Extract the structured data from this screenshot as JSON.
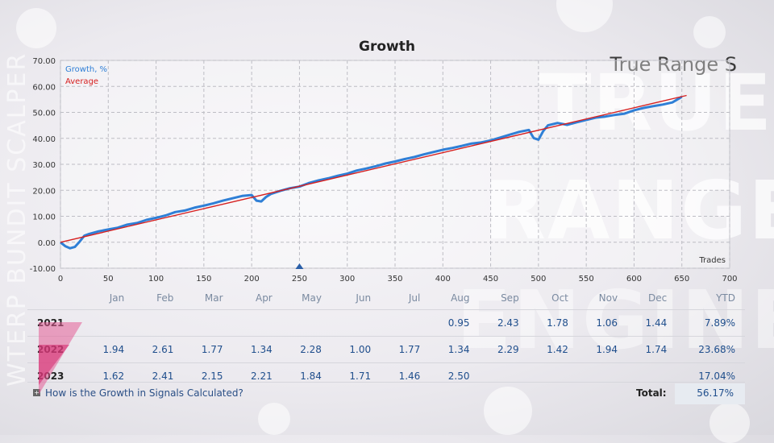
{
  "brand": {
    "title": "True Range S",
    "watermark_words": [
      "TRUE",
      "RANGE",
      "ENGINE"
    ],
    "side_text": "WTERP BUNDIT SCALPER"
  },
  "chart_data": {
    "type": "line",
    "title": "Growth",
    "xlabel": "Trades",
    "ylabel": "",
    "xlim": [
      0,
      700
    ],
    "ylim": [
      -10,
      70
    ],
    "x_ticks": [
      "0",
      "50",
      "100",
      "150",
      "200",
      "250",
      "300",
      "350",
      "400",
      "450",
      "500",
      "550",
      "600",
      "650",
      "700"
    ],
    "y_ticks": [
      "70.00",
      "60.00",
      "50.00",
      "40.00",
      "30.00",
      "20.00",
      "10.00",
      "0.00",
      "-10.00"
    ],
    "legend_placement": "top-left",
    "grid": true,
    "series": [
      {
        "name": "Growth, %",
        "color": "#2f7fd6",
        "x": [
          0,
          5,
          10,
          15,
          20,
          25,
          30,
          40,
          50,
          60,
          70,
          80,
          90,
          100,
          110,
          120,
          130,
          140,
          150,
          160,
          170,
          180,
          190,
          200,
          205,
          210,
          215,
          220,
          230,
          240,
          250,
          260,
          270,
          280,
          290,
          300,
          310,
          320,
          330,
          340,
          350,
          360,
          370,
          380,
          390,
          400,
          410,
          420,
          430,
          440,
          450,
          460,
          470,
          480,
          490,
          495,
          500,
          505,
          510,
          520,
          530,
          540,
          550,
          560,
          570,
          580,
          590,
          600,
          610,
          620,
          630,
          640,
          650
        ],
        "values": [
          0.0,
          -1.5,
          -2.3,
          -1.8,
          0.2,
          2.5,
          3.2,
          4.2,
          4.9,
          5.6,
          6.8,
          7.4,
          8.6,
          9.4,
          10.3,
          11.6,
          12.2,
          13.3,
          14.1,
          15.0,
          16.0,
          16.9,
          17.8,
          18.2,
          16.0,
          15.7,
          17.4,
          18.6,
          19.8,
          20.8,
          21.4,
          22.8,
          23.8,
          24.6,
          25.6,
          26.4,
          27.6,
          28.4,
          29.3,
          30.3,
          31.1,
          32.0,
          32.8,
          33.8,
          34.7,
          35.6,
          36.3,
          37.1,
          38.0,
          38.4,
          39.2,
          40.3,
          41.4,
          42.5,
          43.2,
          40.1,
          39.5,
          42.8,
          45.0,
          45.9,
          45.2,
          46.2,
          47.1,
          48.0,
          48.4,
          49.0,
          49.5,
          50.8,
          51.7,
          52.4,
          53.0,
          53.8,
          56.0
        ]
      },
      {
        "name": "Average",
        "color": "#d62020",
        "x": [
          0,
          655
        ],
        "values": [
          0.0,
          56.5
        ]
      }
    ],
    "markers": [
      {
        "x": 250,
        "y": -10,
        "shape": "triangle",
        "color": "#2a5fa8"
      }
    ]
  },
  "table": {
    "headers": [
      "Jan",
      "Feb",
      "Mar",
      "Apr",
      "May",
      "Jun",
      "Jul",
      "Aug",
      "Sep",
      "Oct",
      "Nov",
      "Dec",
      "YTD"
    ],
    "rows": [
      {
        "year": "2021",
        "cells": [
          "",
          "",
          "",
          "",
          "",
          "",
          "",
          "0.95",
          "2.43",
          "1.78",
          "1.06",
          "1.44",
          "7.89%"
        ]
      },
      {
        "year": "2022",
        "cells": [
          "1.94",
          "2.61",
          "1.77",
          "1.34",
          "2.28",
          "1.00",
          "1.77",
          "1.34",
          "2.29",
          "1.42",
          "1.94",
          "1.74",
          "23.68%"
        ]
      },
      {
        "year": "2023",
        "cells": [
          "1.62",
          "2.41",
          "2.15",
          "2.21",
          "1.84",
          "1.71",
          "1.46",
          "2.50",
          "",
          "",
          "",
          "",
          "17.04%"
        ]
      }
    ]
  },
  "footer": {
    "faq_icon": "plus-icon",
    "faq_link": "How is the Growth in Signals Calculated?",
    "total_label": "Total:",
    "total_value": "56.17%"
  }
}
